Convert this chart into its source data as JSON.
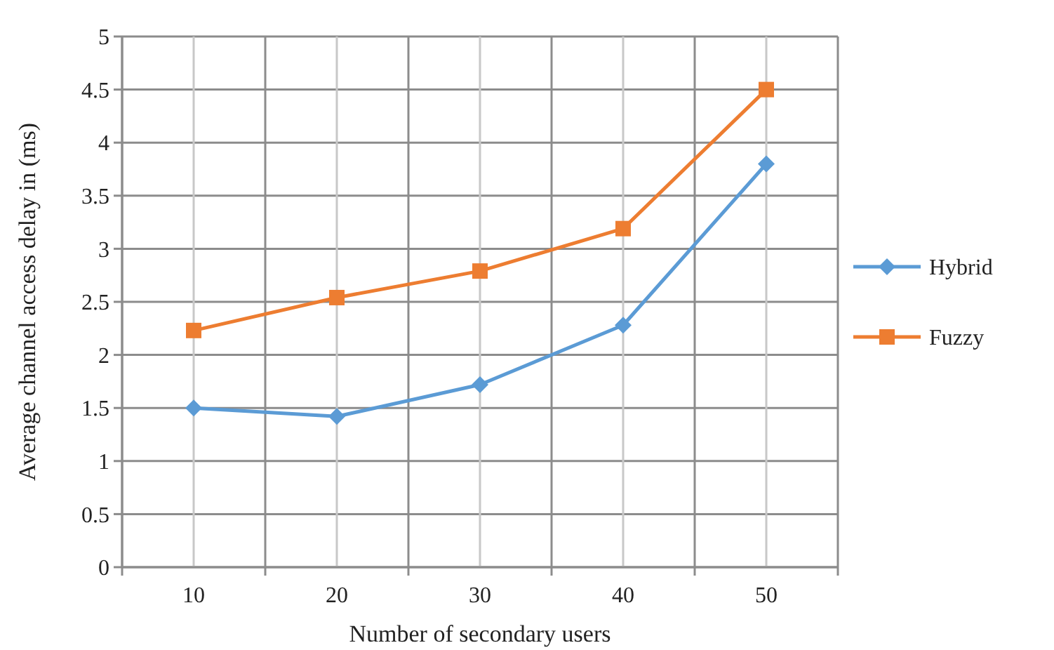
{
  "chart_data": {
    "type": "line",
    "xlabel": "Number of secondary users",
    "ylabel": "Average channel access delay in (ms)",
    "categories": [
      "10",
      "20",
      "30",
      "40",
      "50"
    ],
    "series": [
      {
        "name": "Hybrid",
        "color": "#5b9bd5",
        "marker": "diamond",
        "values": [
          1.5,
          1.42,
          1.72,
          2.28,
          3.8
        ]
      },
      {
        "name": "Fuzzy",
        "color": "#ed7d31",
        "marker": "square",
        "values": [
          2.23,
          2.54,
          2.79,
          3.19,
          4.5
        ]
      }
    ],
    "ylim": [
      0,
      5
    ],
    "yticks": [
      0,
      0.5,
      1,
      1.5,
      2,
      2.5,
      3,
      3.5,
      4,
      4.5,
      5
    ],
    "grid": true,
    "legend": "right",
    "line_style": "solid"
  }
}
